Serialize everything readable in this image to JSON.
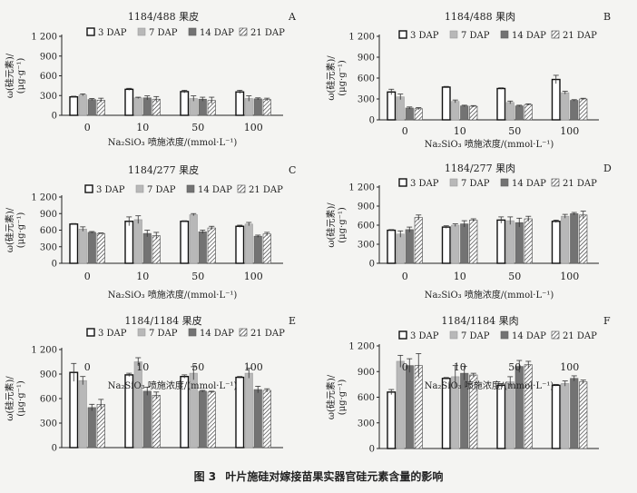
{
  "figure": {
    "caption_number": "图 3",
    "caption_text": "叶片施硅对嫁接苗果实器官硅元素含量的影响"
  },
  "legend_labels": [
    "3 DAP",
    "7 DAP",
    "14 DAP",
    "21 DAP"
  ],
  "colors": {
    "3 DAP": "#ffffff",
    "7 DAP": "#b8b8b8",
    "14 DAP": "#737373",
    "21 DAP": "hatch"
  },
  "chart_data": [
    {
      "type": "bar",
      "panel": "A",
      "title": "1184/488 果皮",
      "xlabel": "Na₂SiO₃ 喷施浓度/(mmol·L⁻¹)",
      "ylabel": "ω(硅元素)/(μg·g⁻¹)",
      "ylim": [
        0,
        1200
      ],
      "yticks": [
        "0",
        "300",
        "600",
        "900",
        "1 200"
      ],
      "categories": [
        "0",
        "10",
        "50",
        "100"
      ],
      "series": [
        {
          "name": "3 DAP",
          "values": [
            280,
            395,
            360,
            355
          ],
          "err": [
            10,
            15,
            20,
            25
          ]
        },
        {
          "name": "7 DAP",
          "values": [
            310,
            265,
            255,
            255
          ],
          "err": [
            15,
            10,
            40,
            40
          ]
        },
        {
          "name": "14 DAP",
          "values": [
            240,
            265,
            245,
            250
          ],
          "err": [
            15,
            30,
            30,
            15
          ]
        },
        {
          "name": "21 DAP",
          "values": [
            230,
            245,
            225,
            240
          ],
          "err": [
            30,
            40,
            50,
            20
          ]
        }
      ]
    },
    {
      "type": "bar",
      "panel": "B",
      "title": "1184/488 果肉",
      "xlabel": "Na₂SiO₃ 喷施浓度/(mmol·L⁻¹)",
      "ylabel": "ω(硅元素)/(μg·g⁻¹)",
      "ylim": [
        0,
        1200
      ],
      "yticks": [
        "0",
        "300",
        "600",
        "900",
        "1 200"
      ],
      "categories": [
        "0",
        "10",
        "50",
        "100"
      ],
      "series": [
        {
          "name": "3 DAP",
          "values": [
            400,
            470,
            450,
            580
          ],
          "err": [
            40,
            10,
            10,
            60
          ]
        },
        {
          "name": "7 DAP",
          "values": [
            330,
            265,
            250,
            390
          ],
          "err": [
            40,
            20,
            20,
            20
          ]
        },
        {
          "name": "14 DAP",
          "values": [
            170,
            200,
            200,
            280
          ],
          "err": [
            15,
            10,
            10,
            10
          ]
        },
        {
          "name": "21 DAP",
          "values": [
            160,
            195,
            220,
            300
          ],
          "err": [
            15,
            10,
            10,
            10
          ]
        }
      ]
    },
    {
      "type": "bar",
      "panel": "C",
      "title": "1184/277 果皮",
      "xlabel": "Na₂SiO₃ 喷施浓度/(mmol·L⁻¹)",
      "ylabel": "ω(硅元素)/(μg·g⁻¹)",
      "ylim": [
        0,
        1200
      ],
      "yticks": [
        "0",
        "300",
        "600",
        "900",
        "1 200"
      ],
      "categories": [
        "0",
        "10",
        "50",
        "100"
      ],
      "series": [
        {
          "name": "3 DAP",
          "values": [
            710,
            760,
            760,
            670
          ],
          "err": [
            10,
            80,
            10,
            20
          ]
        },
        {
          "name": "7 DAP",
          "values": [
            620,
            790,
            880,
            710
          ],
          "err": [
            40,
            70,
            20,
            30
          ]
        },
        {
          "name": "14 DAP",
          "values": [
            560,
            540,
            570,
            490
          ],
          "err": [
            15,
            60,
            30,
            20
          ]
        },
        {
          "name": "21 DAP",
          "values": [
            540,
            500,
            640,
            530
          ],
          "err": [
            10,
            60,
            30,
            30
          ]
        }
      ]
    },
    {
      "type": "bar",
      "panel": "D",
      "title": "1184/277 果肉",
      "xlabel": "Na₂SiO₃ 喷施浓度/(mmol·L⁻¹)",
      "ylabel": "ω(硅元素)/(μg·g⁻¹)",
      "ylim": [
        0,
        1200
      ],
      "yticks": [
        "0",
        "300",
        "600",
        "900",
        "1 200"
      ],
      "categories": [
        "0",
        "10",
        "50",
        "100"
      ],
      "series": [
        {
          "name": "3 DAP",
          "values": [
            520,
            570,
            680,
            660
          ],
          "err": [
            10,
            20,
            50,
            20
          ]
        },
        {
          "name": "7 DAP",
          "values": [
            460,
            600,
            670,
            740
          ],
          "err": [
            50,
            20,
            60,
            30
          ]
        },
        {
          "name": "14 DAP",
          "values": [
            530,
            620,
            640,
            780
          ],
          "err": [
            40,
            50,
            70,
            20
          ]
        },
        {
          "name": "21 DAP",
          "values": [
            720,
            680,
            700,
            760
          ],
          "err": [
            40,
            20,
            40,
            60
          ]
        }
      ]
    },
    {
      "type": "bar",
      "panel": "E",
      "title": "1184/1184 果皮",
      "xlabel": "Na₂SiO₃ 喷施浓度/(mmol·L⁻¹)",
      "ylabel": "ω(硅元素)/(μg·g⁻¹)",
      "ylim": [
        0,
        1200
      ],
      "yticks": [
        "0",
        "300",
        "600",
        "900",
        "1 200"
      ],
      "categories": [
        "0",
        "10",
        "50",
        "100"
      ],
      "series": [
        {
          "name": "3 DAP",
          "values": [
            920,
            890,
            870,
            860
          ],
          "err": [
            110,
            20,
            20,
            10
          ]
        },
        {
          "name": "7 DAP",
          "values": [
            820,
            1050,
            910,
            910
          ],
          "err": [
            50,
            50,
            80,
            60
          ]
        },
        {
          "name": "14 DAP",
          "values": [
            490,
            690,
            690,
            710
          ],
          "err": [
            40,
            50,
            10,
            40
          ]
        },
        {
          "name": "21 DAP",
          "values": [
            530,
            640,
            680,
            700
          ],
          "err": [
            60,
            40,
            10,
            20
          ]
        }
      ]
    },
    {
      "type": "bar",
      "panel": "F",
      "title": "1184/1184 果肉",
      "xlabel": "Na₂SiO₃ 喷施浓度/(mmol·L⁻¹)",
      "ylabel": "ω(硅元素)/(μg·g⁻¹)",
      "ylim": [
        0,
        1200
      ],
      "yticks": [
        "0",
        "300",
        "600",
        "900",
        "1 200"
      ],
      "categories": [
        "0",
        "10",
        "50",
        "100"
      ],
      "series": [
        {
          "name": "3 DAP",
          "values": [
            660,
            820,
            740,
            740
          ],
          "err": [
            30,
            10,
            20,
            10
          ]
        },
        {
          "name": "7 DAP",
          "values": [
            1020,
            840,
            780,
            760
          ],
          "err": [
            70,
            130,
            60,
            30
          ]
        },
        {
          "name": "14 DAP",
          "values": [
            970,
            880,
            960,
            820
          ],
          "err": [
            80,
            80,
            70,
            30
          ]
        },
        {
          "name": "21 DAP",
          "values": [
            970,
            860,
            980,
            780
          ],
          "err": [
            140,
            20,
            40,
            20
          ]
        }
      ]
    }
  ]
}
